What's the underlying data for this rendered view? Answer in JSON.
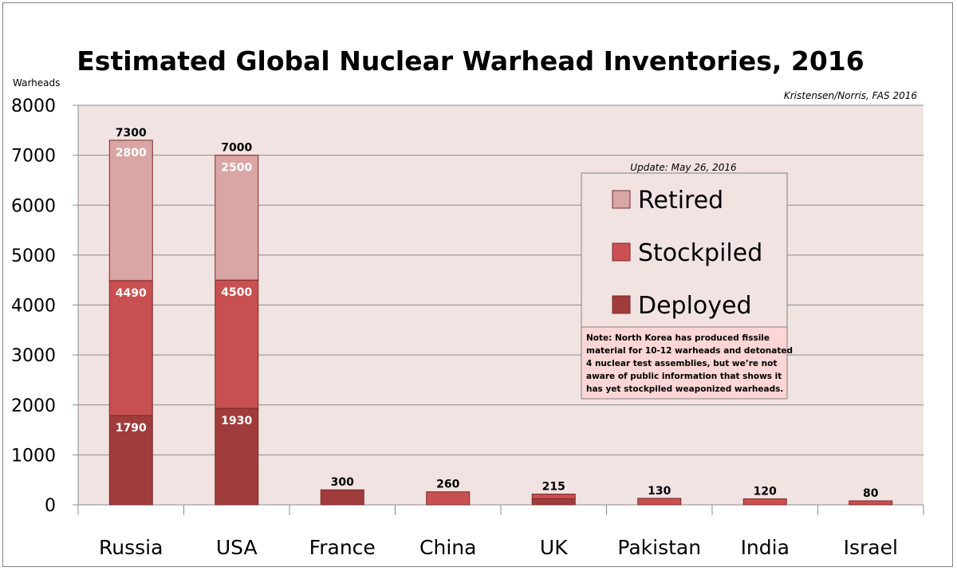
{
  "chart_data": {
    "type": "bar",
    "stacked": true,
    "title": "Estimated Global Nuclear Warhead Inventories, 2016",
    "ylabel": "Warheads",
    "xlabel": "",
    "ylim": [
      0,
      8000
    ],
    "yticks": [
      "0",
      "1000",
      "2000",
      "3000",
      "4000",
      "5000",
      "6000",
      "7000",
      "8000"
    ],
    "source": "Kristensen/Norris, FAS 2016",
    "update": "Update: May 26, 2016",
    "categories": [
      "Russia",
      "USA",
      "France",
      "China",
      "UK",
      "Pakistan",
      "India",
      "Israel"
    ],
    "series": [
      {
        "name": "Deployed",
        "color": "#a03c3c",
        "values": [
          1790,
          1930,
          300,
          0,
          120,
          0,
          0,
          0
        ]
      },
      {
        "name": "Stockpiled",
        "color": "#c85050",
        "values": [
          2700,
          2570,
          0,
          260,
          95,
          130,
          120,
          80
        ]
      },
      {
        "name": "Retired",
        "color": "#d9a5a5",
        "values": [
          2810,
          2500,
          0,
          0,
          0,
          0,
          0,
          0
        ]
      }
    ],
    "segment_labels": [
      [
        "1790",
        "4490",
        "2800"
      ],
      [
        "1930",
        "4500",
        "2500"
      ],
      [],
      [],
      [],
      [],
      [],
      []
    ],
    "totals": [
      "7300",
      "7000",
      "300",
      "260",
      "215",
      "130",
      "120",
      "80"
    ],
    "legend_order": [
      "Retired",
      "Stockpiled",
      "Deployed"
    ],
    "legend_position": "right",
    "grid": true,
    "note_lines": [
      "Note: North Korea has produced fissile",
      "material for 10-12 warheads and detonated",
      "4 nuclear test assemblies, but we’re not",
      "aware of public information that shows it",
      "has yet stockpiled weaponized warheads."
    ],
    "colors": {
      "plot_background": "#f2e3e3",
      "grid": "#8c8c8c",
      "bar_edge": "#7a2a2a",
      "note_background": "#fcd6d6"
    }
  }
}
